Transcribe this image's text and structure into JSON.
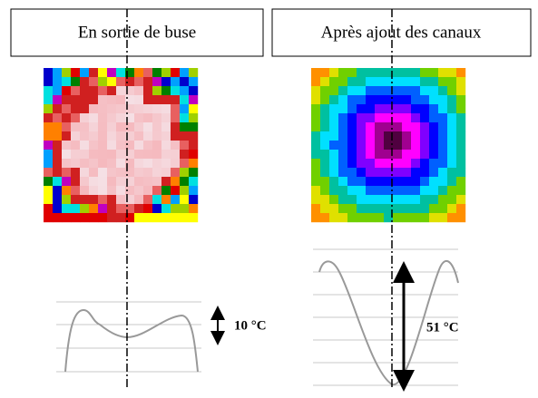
{
  "panels": [
    {
      "title": "En sortie de buse",
      "delta_label": "10 °C"
    },
    {
      "title": "Après ajout des canaux",
      "delta_label": "51 °C"
    }
  ]
}
